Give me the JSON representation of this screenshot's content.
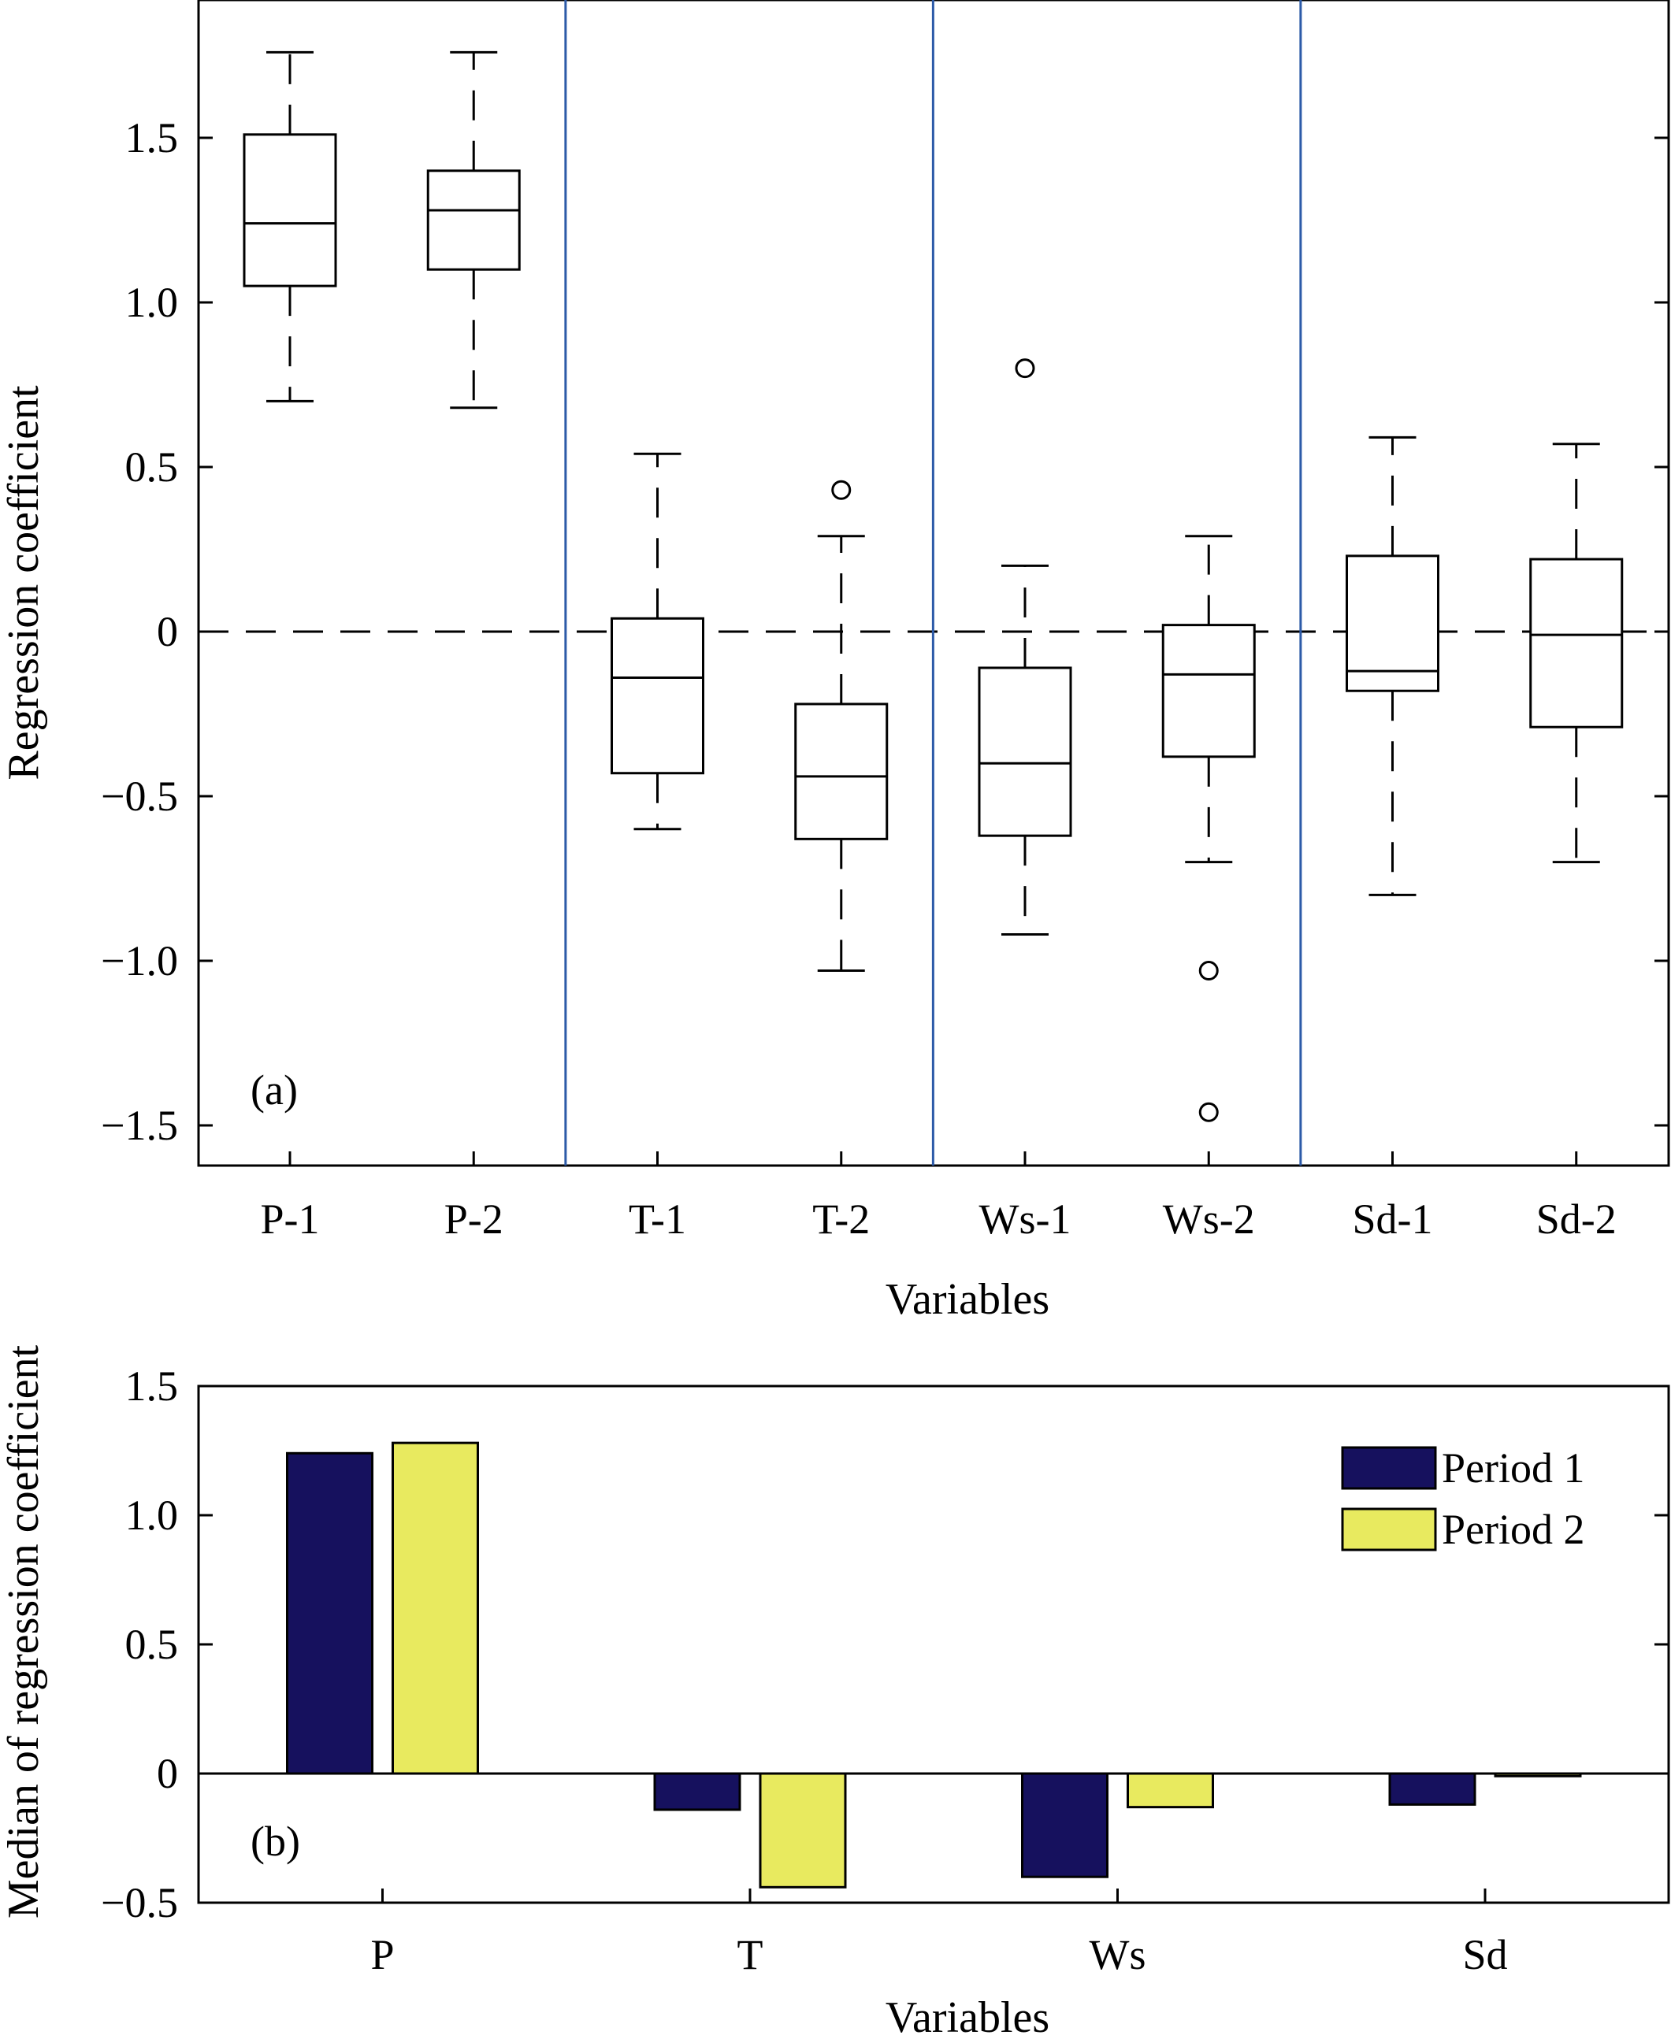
{
  "chart_data": [
    {
      "type": "boxplot",
      "panel_label": "(a)",
      "ylabel": "Regression coefficient",
      "xlabel": "Variables",
      "ylim": [
        -1.62,
        1.9
      ],
      "yticks": [
        1.5,
        1.0,
        0.5,
        0,
        -0.5,
        -1.0,
        -1.5
      ],
      "ytick_labels": [
        "1.5",
        "1.0",
        "0.5",
        "0",
        "−0.5",
        "−1.0",
        "−1.5"
      ],
      "zero_line": "dashed",
      "group_separators": "blue vertical lines between P, T, Ws and Sd groups",
      "boxes": [
        {
          "label": "P-1",
          "whisker_low": 0.7,
          "q1": 1.05,
          "median": 1.24,
          "q3": 1.51,
          "whisker_high": 1.76,
          "outliers": []
        },
        {
          "label": "P-2",
          "whisker_low": 0.68,
          "q1": 1.1,
          "median": 1.28,
          "q3": 1.4,
          "whisker_high": 1.76,
          "outliers": []
        },
        {
          "label": "T-1",
          "whisker_low": -0.6,
          "q1": -0.43,
          "median": -0.14,
          "q3": 0.04,
          "whisker_high": 0.54,
          "outliers": []
        },
        {
          "label": "T-2",
          "whisker_low": -1.03,
          "q1": -0.63,
          "median": -0.44,
          "q3": -0.22,
          "whisker_high": 0.29,
          "outliers": [
            0.43
          ]
        },
        {
          "label": "Ws-1",
          "whisker_low": -0.92,
          "q1": -0.62,
          "median": -0.4,
          "q3": -0.11,
          "whisker_high": 0.2,
          "outliers": [
            0.8
          ]
        },
        {
          "label": "Ws-2",
          "whisker_low": -0.7,
          "q1": -0.38,
          "median": -0.13,
          "q3": 0.02,
          "whisker_high": 0.29,
          "outliers": [
            -1.03,
            -1.46
          ]
        },
        {
          "label": "Sd-1",
          "whisker_low": -0.8,
          "q1": -0.18,
          "median": -0.12,
          "q3": 0.23,
          "whisker_high": 0.59,
          "outliers": []
        },
        {
          "label": "Sd-2",
          "whisker_low": -0.7,
          "q1": -0.29,
          "median": -0.01,
          "q3": 0.22,
          "whisker_high": 0.57,
          "outliers": []
        }
      ]
    },
    {
      "type": "bar",
      "panel_label": "(b)",
      "ylabel": "Median of regression coefficient",
      "xlabel": "Variables",
      "ylim": [
        -0.5,
        1.5
      ],
      "yticks": [
        1.5,
        1.0,
        0.5,
        0,
        -0.5
      ],
      "ytick_labels": [
        "1.5",
        "1.0",
        "0.5",
        "0",
        "−0.5"
      ],
      "categories": [
        "P",
        "T",
        "Ws",
        "Sd"
      ],
      "series": [
        {
          "name": "Period 1",
          "color": "#16115e",
          "values": [
            1.24,
            -0.14,
            -0.4,
            -0.12
          ]
        },
        {
          "name": "Period 2",
          "color": "#e8ea5f",
          "values": [
            1.28,
            -0.44,
            -0.13,
            -0.01
          ]
        }
      ],
      "legend": "top-right"
    }
  ]
}
